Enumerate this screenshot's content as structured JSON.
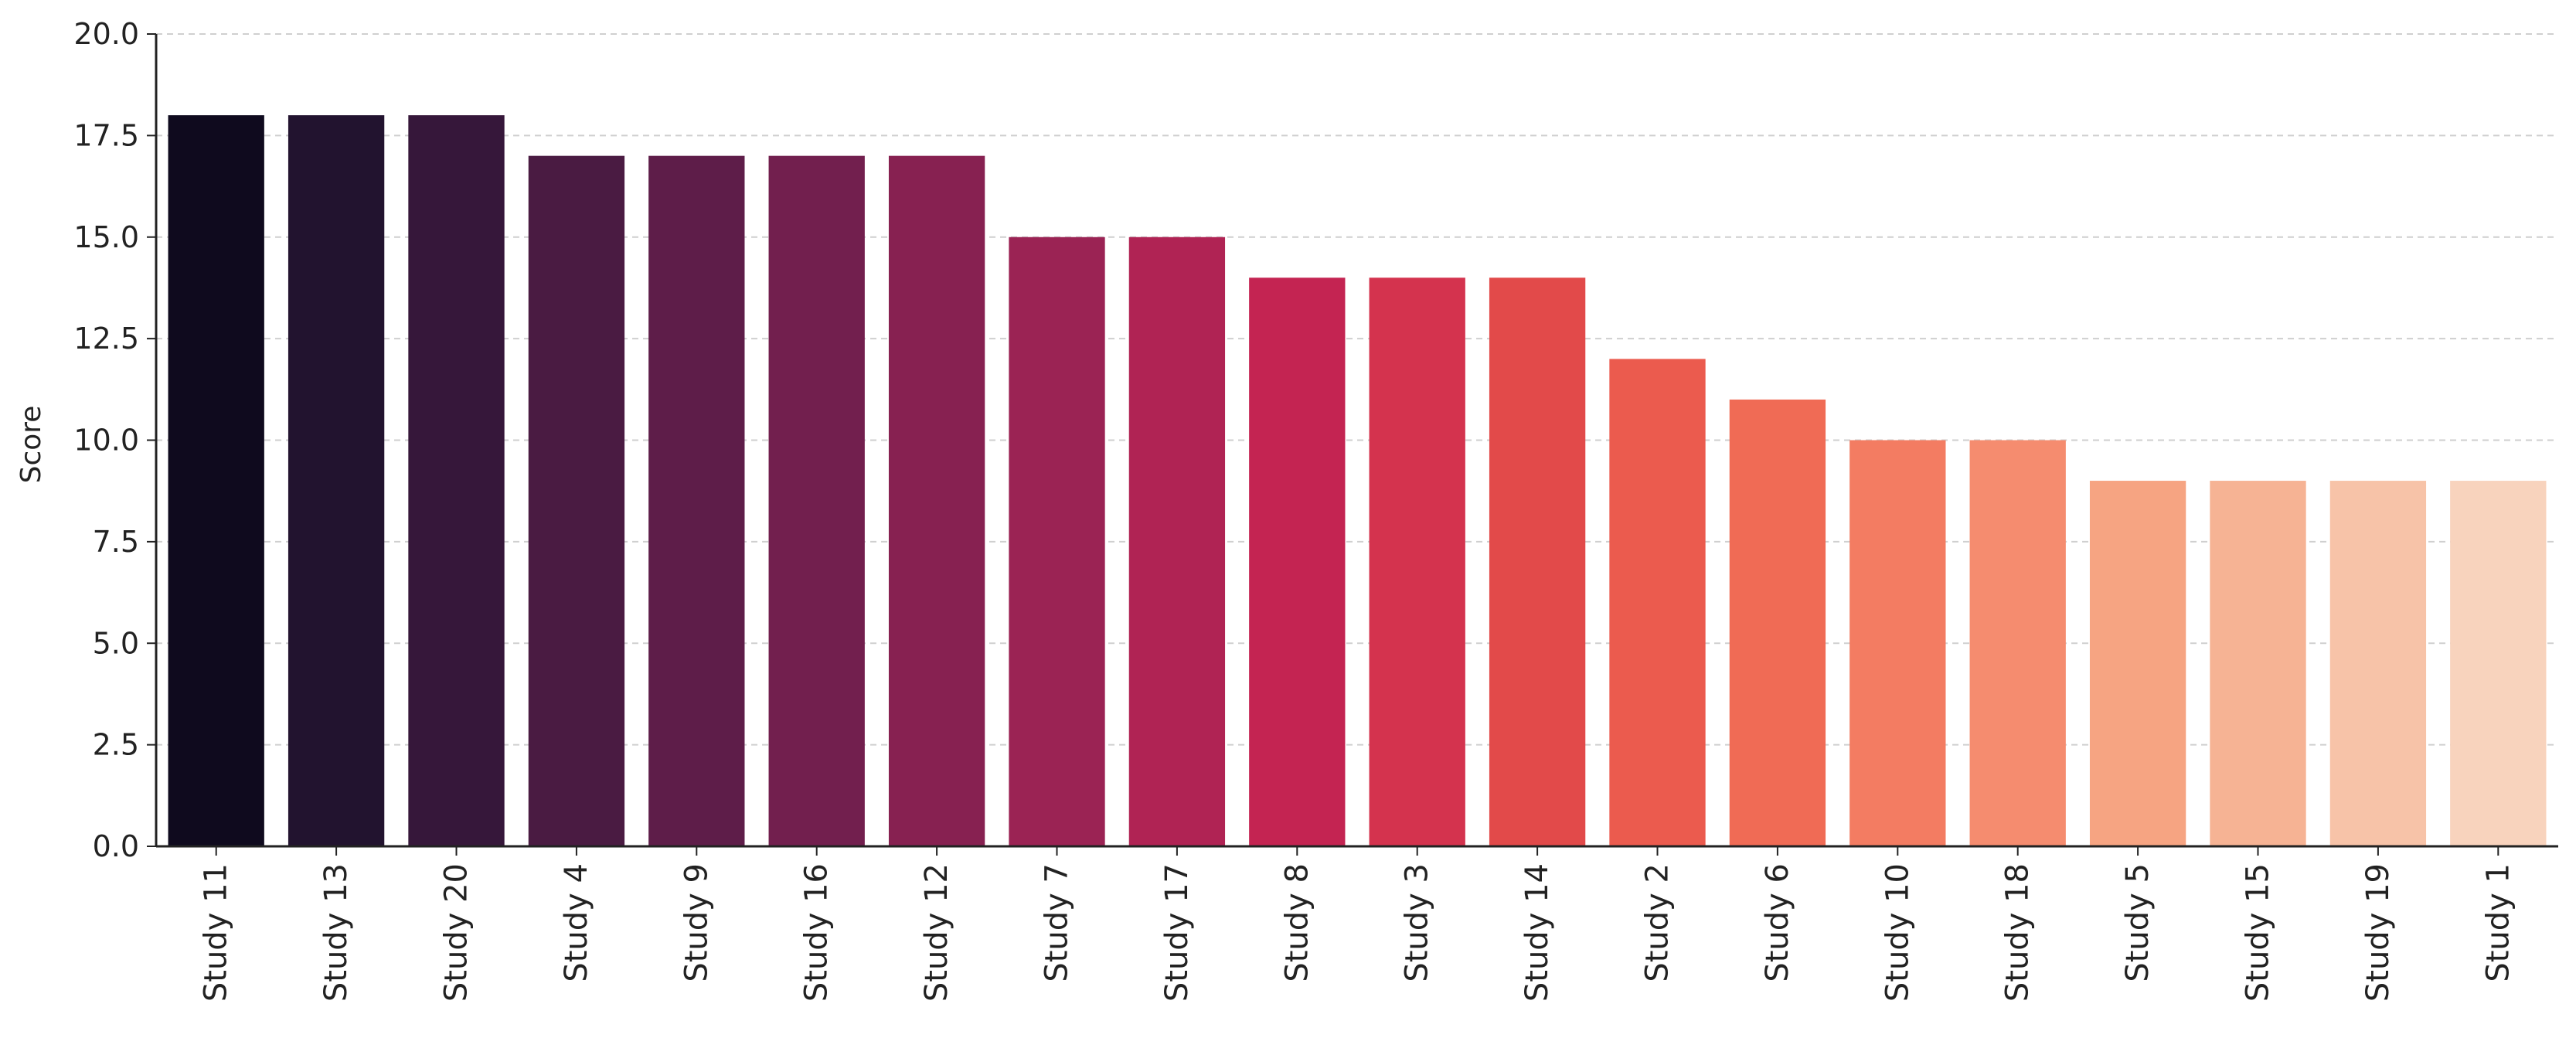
{
  "chart_data": {
    "type": "bar",
    "title": "",
    "xlabel": "",
    "ylabel": "Score",
    "ylim": [
      0,
      20
    ],
    "yticks": [
      "0.0",
      "2.5",
      "5.0",
      "7.5",
      "10.0",
      "12.5",
      "15.0",
      "17.5",
      "20.0"
    ],
    "grid": "horizontal dashed",
    "legend": "none",
    "categories": [
      "Study 11",
      "Study 13",
      "Study 20",
      "Study 4",
      "Study 9",
      "Study 16",
      "Study 12",
      "Study 7",
      "Study 17",
      "Study 8",
      "Study 3",
      "Study 14",
      "Study 2",
      "Study 6",
      "Study 10",
      "Study 18",
      "Study 5",
      "Study 15",
      "Study 19",
      "Study 1"
    ],
    "values": [
      18,
      18,
      18,
      17,
      17,
      17,
      17,
      15,
      15,
      14,
      14,
      14,
      12,
      11,
      10,
      10,
      9,
      9,
      9,
      9
    ],
    "colors": [
      "#0f0a1e",
      "#22132f",
      "#36173a",
      "#4a1b42",
      "#5e1d49",
      "#721f4e",
      "#872151",
      "#9b2354",
      "#b02354",
      "#c42452",
      "#d4334e",
      "#e24a4a",
      "#eb5b4e",
      "#f06b55",
      "#f37c62",
      "#f58c6f",
      "#f6a482",
      "#f6b394",
      "#f7c3a8",
      "#f8d3bd"
    ]
  }
}
